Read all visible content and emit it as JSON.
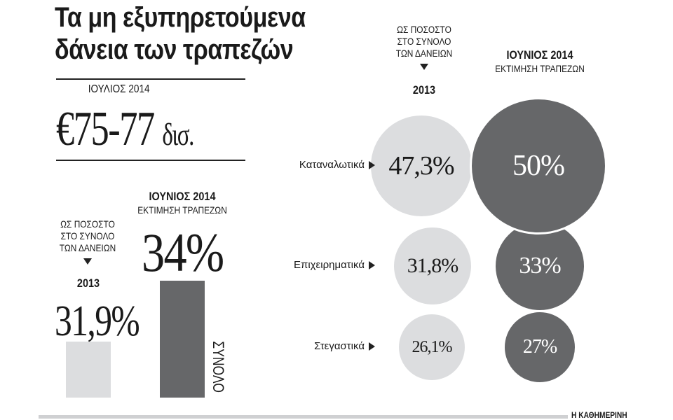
{
  "title": [
    "Τα μη εξυπηρετούμενα",
    "δάνεια των τραπεζών"
  ],
  "headline": {
    "label": "ΙΟΥΛΙΟΣ 2014",
    "value": "€75-77",
    "unit": "δισ."
  },
  "colors": {
    "y2013": "#dcdddf",
    "y2014": "#666769"
  },
  "legend": {
    "share": [
      "ΩΣ ΠΟΣΟΣΤΟ",
      "ΣΤΟ ΣΥΝΟΛΟ",
      "ΤΩΝ ΔΑΝΕΙΩΝ"
    ],
    "y2013": "2013",
    "y2014": "ΙΟΥΝΙΟΣ 2014",
    "estimate": "ΕΚΤΙΜΗΣΗ ΤΡΑΠΕΖΩΝ"
  },
  "chart_data": [
    {
      "type": "bar",
      "categories": [
        "2013",
        "ΙΟΥΝΙΟΣ 2014"
      ],
      "values": [
        31.9,
        34
      ],
      "labels": [
        "31,9%",
        "34%"
      ],
      "axis_label": "ΣΥΝΟΛΟ"
    },
    {
      "type": "bubble",
      "categories": [
        "Καταναλωτικά",
        "Επιχειρηματικά",
        "Στεγαστικά"
      ],
      "series": [
        {
          "name": "2013",
          "values": [
            47.3,
            31.8,
            26.1
          ],
          "labels": [
            "47,3%",
            "31,8%",
            "26,1%"
          ]
        },
        {
          "name": "ΙΟΥΝΙΟΣ 2014",
          "values": [
            50,
            33,
            27
          ],
          "labels": [
            "50%",
            "33%",
            "27%"
          ]
        }
      ]
    }
  ],
  "footer": {
    "source": "Η ΚΑΘΗΜΕΡΙΝΗ"
  }
}
